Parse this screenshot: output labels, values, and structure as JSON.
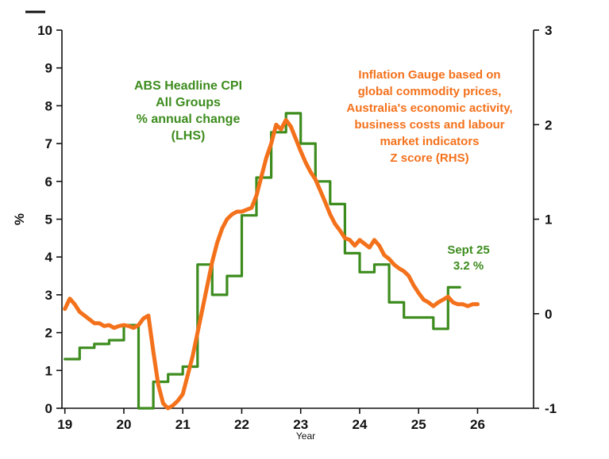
{
  "chart_data": {
    "type": "line",
    "title": "",
    "xlabel": "Year",
    "x_ticks": [
      19,
      20,
      21,
      22,
      23,
      24,
      25,
      26
    ],
    "x_range": [
      18.95,
      26.95
    ],
    "grid": false,
    "left_axis": {
      "label": "%",
      "min": 0,
      "max": 10,
      "ticks": [
        0,
        1,
        2,
        3,
        4,
        5,
        6,
        7,
        8,
        9,
        10
      ]
    },
    "right_axis": {
      "label": "",
      "min": -1,
      "max": 3,
      "ticks": [
        -1,
        0,
        1,
        2,
        3
      ]
    },
    "series": [
      {
        "name": "ABS Headline CPI All Groups % annual change (LHS)",
        "axis": "left",
        "color": "#3d8c1e",
        "line_style": "step",
        "stroke_width": 3.2,
        "x_start": 19.0,
        "x_step": 0.25,
        "values": [
          1.3,
          1.6,
          1.7,
          1.8,
          2.2,
          -0.3,
          0.7,
          0.9,
          1.1,
          3.8,
          3.0,
          3.5,
          5.1,
          6.1,
          7.3,
          7.8,
          7.0,
          6.0,
          5.4,
          4.1,
          3.6,
          3.8,
          2.8,
          2.4,
          2.4,
          2.1,
          3.2
        ]
      },
      {
        "name": "Inflation Gauge Z score (RHS)",
        "axis": "right",
        "color": "#f4711b",
        "line_style": "line",
        "stroke_width": 5,
        "x_start": 19.0,
        "x_step": 0.083333,
        "values": [
          0.05,
          0.16,
          0.1,
          0.02,
          -0.02,
          -0.06,
          -0.1,
          -0.1,
          -0.13,
          -0.12,
          -0.15,
          -0.13,
          -0.12,
          -0.13,
          -0.15,
          -0.12,
          -0.05,
          -0.02,
          -0.4,
          -0.75,
          -0.95,
          -1.0,
          -0.97,
          -0.92,
          -0.85,
          -0.65,
          -0.45,
          -0.2,
          0.05,
          0.3,
          0.55,
          0.75,
          0.9,
          1.0,
          1.05,
          1.08,
          1.08,
          1.1,
          1.12,
          1.25,
          1.45,
          1.65,
          1.8,
          2.0,
          1.95,
          2.05,
          1.98,
          1.85,
          1.72,
          1.6,
          1.5,
          1.42,
          1.3,
          1.18,
          1.05,
          0.95,
          0.88,
          0.8,
          0.78,
          0.72,
          0.78,
          0.74,
          0.7,
          0.78,
          0.72,
          0.62,
          0.58,
          0.52,
          0.48,
          0.45,
          0.4,
          0.3,
          0.22,
          0.15,
          0.12,
          0.08,
          0.12,
          0.15,
          0.18,
          0.12,
          0.1,
          0.1,
          0.08,
          0.1,
          0.1
        ]
      }
    ],
    "annotations": {
      "cpi_label": {
        "color": "#3d8c1e",
        "line1": "ABS Headline CPI",
        "line2": "All Groups",
        "line3": "% annual change",
        "line4": "(LHS)"
      },
      "gauge_label": {
        "color": "#f4711b",
        "line1": "Inflation Gauge based on",
        "line2": "global commodity prices,",
        "line3": "Australia's economic activity,",
        "line4": "business costs  and labour",
        "line5": "market indicators",
        "line6": "Z score (RHS)"
      },
      "point_label": {
        "color": "#3d8c1e",
        "line1": "Sept 25",
        "line2": "3.2 %"
      }
    }
  }
}
